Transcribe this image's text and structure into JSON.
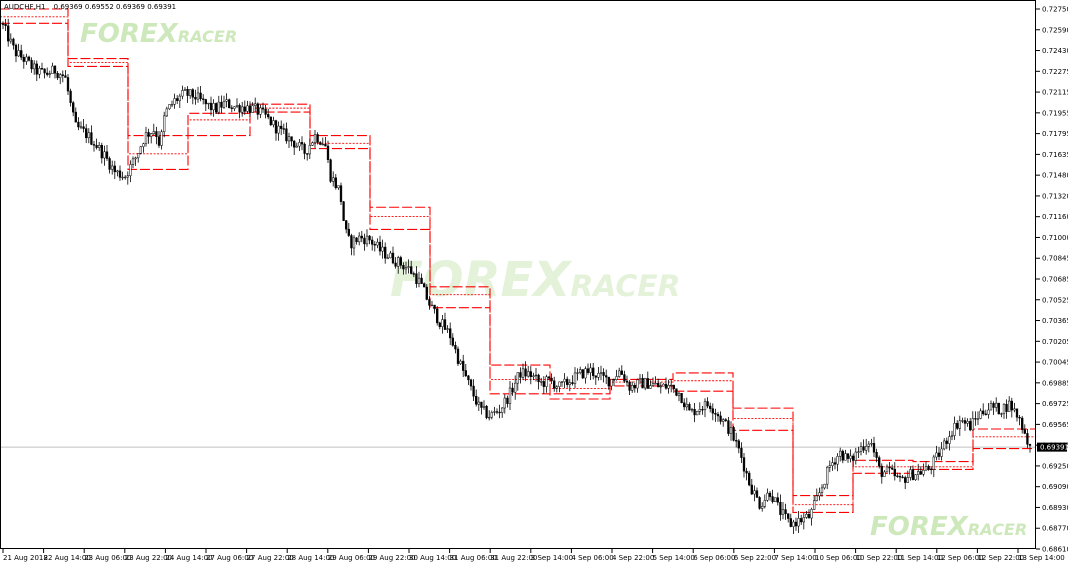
{
  "header": {
    "symbol": "AUDCHF,H1",
    "ohlc": "0.69369 0.69552 0.69369 0.69391"
  },
  "watermark": {
    "text_a": "FOREX",
    "text_b": "RACER"
  },
  "colors": {
    "background": "#ffffff",
    "candles": "#000000",
    "levels": "#ff0000",
    "price_line": "#c0c0c0",
    "price_box": "#000000",
    "watermark": "#c8e6b4"
  },
  "chart_data": {
    "type": "candlestick",
    "title": "",
    "xlabel": "",
    "ylabel": "",
    "ylim": [
      0.6861,
      0.7275
    ],
    "y_ticks": [
      "0.72750",
      "0.72590",
      "0.72430",
      "0.72275",
      "0.72115",
      "0.71955",
      "0.71795",
      "0.71635",
      "0.71480",
      "0.71320",
      "0.71160",
      "0.71000",
      "0.70845",
      "0.70685",
      "0.70525",
      "0.70365",
      "0.70205",
      "0.70045",
      "0.69885",
      "0.69725",
      "0.69565",
      "0.69405",
      "0.69250",
      "0.69090",
      "0.68930",
      "0.68770",
      "0.68610"
    ],
    "x_ticks": [
      "21 Aug 2018",
      "22 Aug 14:00",
      "23 Aug 06:00",
      "23 Aug 22:00",
      "24 Aug 14:00",
      "27 Aug 06:00",
      "27 Aug 22:00",
      "28 Aug 14:00",
      "29 Aug 06:00",
      "29 Aug 22:00",
      "30 Aug 14:00",
      "31 Aug 06:00",
      "31 Aug 22:00",
      "3 Sep 14:00",
      "4 Sep 06:00",
      "4 Sep 22:00",
      "5 Sep 14:00",
      "6 Sep 06:00",
      "6 Sep 22:00",
      "7 Sep 14:00",
      "10 Sep 06:00",
      "10 Sep 22:00",
      "11 Sep 14:00",
      "12 Sep 06:00",
      "12 Sep 22:00",
      "13 Sep 14:00"
    ],
    "current_price": 0.69391,
    "close_path": [
      [
        0,
        0.7267
      ],
      [
        15,
        0.7242
      ],
      [
        25,
        0.7236
      ],
      [
        35,
        0.7228
      ],
      [
        45,
        0.7225
      ],
      [
        55,
        0.7228
      ],
      [
        65,
        0.7223
      ],
      [
        75,
        0.7185
      ],
      [
        85,
        0.718
      ],
      [
        95,
        0.7172
      ],
      [
        105,
        0.7162
      ],
      [
        115,
        0.715
      ],
      [
        125,
        0.7147
      ],
      [
        135,
        0.716
      ],
      [
        145,
        0.7178
      ],
      [
        155,
        0.7183
      ],
      [
        160,
        0.717
      ],
      [
        165,
        0.7195
      ],
      [
        175,
        0.7205
      ],
      [
        185,
        0.721
      ],
      [
        195,
        0.7208
      ],
      [
        205,
        0.7202
      ],
      [
        215,
        0.7198
      ],
      [
        225,
        0.7203
      ],
      [
        235,
        0.72
      ],
      [
        245,
        0.72
      ],
      [
        255,
        0.7198
      ],
      [
        265,
        0.7193
      ],
      [
        275,
        0.7185
      ],
      [
        285,
        0.7178
      ],
      [
        295,
        0.7172
      ],
      [
        305,
        0.7165
      ],
      [
        315,
        0.7178
      ],
      [
        325,
        0.7172
      ],
      [
        330,
        0.7148
      ],
      [
        340,
        0.7135
      ],
      [
        345,
        0.7105
      ],
      [
        350,
        0.7095
      ],
      [
        360,
        0.71
      ],
      [
        370,
        0.7098
      ],
      [
        380,
        0.709
      ],
      [
        390,
        0.7085
      ],
      [
        400,
        0.708
      ],
      [
        410,
        0.7075
      ],
      [
        420,
        0.7065
      ],
      [
        430,
        0.7048
      ],
      [
        440,
        0.7035
      ],
      [
        450,
        0.7025
      ],
      [
        460,
        0.7003
      ],
      [
        470,
        0.6985
      ],
      [
        480,
        0.6968
      ],
      [
        490,
        0.6963
      ],
      [
        500,
        0.6968
      ],
      [
        510,
        0.698
      ],
      [
        520,
        0.6996
      ],
      [
        530,
        0.6995
      ],
      [
        540,
        0.6988
      ],
      [
        550,
        0.699
      ],
      [
        560,
        0.6985
      ],
      [
        570,
        0.699
      ],
      [
        580,
        0.6995
      ],
      [
        590,
        0.6998
      ],
      [
        600,
        0.6993
      ],
      [
        610,
        0.699
      ],
      [
        620,
        0.6998
      ],
      [
        630,
        0.6985
      ],
      [
        640,
        0.6988
      ],
      [
        650,
        0.6988
      ],
      [
        660,
        0.6985
      ],
      [
        670,
        0.6986
      ],
      [
        680,
        0.698
      ],
      [
        690,
        0.6965
      ],
      [
        700,
        0.697
      ],
      [
        710,
        0.6972
      ],
      [
        720,
        0.6962
      ],
      [
        730,
        0.6952
      ],
      [
        740,
        0.6935
      ],
      [
        750,
        0.691
      ],
      [
        760,
        0.6895
      ],
      [
        770,
        0.6905
      ],
      [
        780,
        0.689
      ],
      [
        790,
        0.688
      ],
      [
        800,
        0.6883
      ],
      [
        810,
        0.6886
      ],
      [
        820,
        0.6905
      ],
      [
        830,
        0.6925
      ],
      [
        840,
        0.6935
      ],
      [
        850,
        0.6928
      ],
      [
        860,
        0.6938
      ],
      [
        870,
        0.6945
      ],
      [
        880,
        0.692
      ],
      [
        890,
        0.692
      ],
      [
        900,
        0.6913
      ],
      [
        910,
        0.6918
      ],
      [
        920,
        0.692
      ],
      [
        930,
        0.6923
      ],
      [
        940,
        0.6935
      ],
      [
        950,
        0.695
      ],
      [
        960,
        0.696
      ],
      [
        970,
        0.6955
      ],
      [
        980,
        0.6965
      ],
      [
        990,
        0.697
      ],
      [
        1000,
        0.6968
      ],
      [
        1010,
        0.6972
      ],
      [
        1020,
        0.696
      ],
      [
        1030,
        0.6939
      ]
    ],
    "levels": [
      {
        "x0": 0,
        "x1": 68,
        "upper": 0.7275,
        "mid": 0.7269,
        "lower": 0.7264
      },
      {
        "x0": 68,
        "x1": 128,
        "upper": 0.7237,
        "mid": 0.7234,
        "lower": 0.7231
      },
      {
        "x0": 128,
        "x1": 188,
        "upper": 0.7178,
        "mid": 0.7164,
        "lower": 0.7152
      },
      {
        "x0": 188,
        "x1": 250,
        "upper": 0.7195,
        "mid": 0.719,
        "lower": 0.7178
      },
      {
        "x0": 250,
        "x1": 310,
        "upper": 0.7202,
        "mid": 0.7199,
        "lower": 0.7196
      },
      {
        "x0": 310,
        "x1": 370,
        "upper": 0.7178,
        "mid": 0.7172,
        "lower": 0.7168
      },
      {
        "x0": 370,
        "x1": 430,
        "upper": 0.7123,
        "mid": 0.7116,
        "lower": 0.7106
      },
      {
        "x0": 430,
        "x1": 490,
        "upper": 0.7062,
        "mid": 0.7056,
        "lower": 0.7046
      },
      {
        "x0": 490,
        "x1": 550,
        "upper": 0.7002,
        "mid": 0.6991,
        "lower": 0.698
      },
      {
        "x0": 550,
        "x1": 610,
        "upper": 0.698,
        "mid": 0.6984,
        "lower": 0.6976
      },
      {
        "x0": 610,
        "x1": 673,
        "upper": 0.6991,
        "mid": 0.6989,
        "lower": 0.6986
      },
      {
        "x0": 673,
        "x1": 733,
        "upper": 0.6996,
        "mid": 0.699,
        "lower": 0.6982
      },
      {
        "x0": 733,
        "x1": 793,
        "upper": 0.6969,
        "mid": 0.6961,
        "lower": 0.6952
      },
      {
        "x0": 793,
        "x1": 853,
        "upper": 0.6902,
        "mid": 0.6895,
        "lower": 0.6889
      },
      {
        "x0": 853,
        "x1": 913,
        "upper": 0.6929,
        "mid": 0.6924,
        "lower": 0.6919
      },
      {
        "x0": 913,
        "x1": 973,
        "upper": 0.6928,
        "mid": 0.6924,
        "lower": 0.6922
      },
      {
        "x0": 973,
        "x1": 1035,
        "upper": 0.6953,
        "mid": 0.6947,
        "lower": 0.6938
      }
    ]
  }
}
